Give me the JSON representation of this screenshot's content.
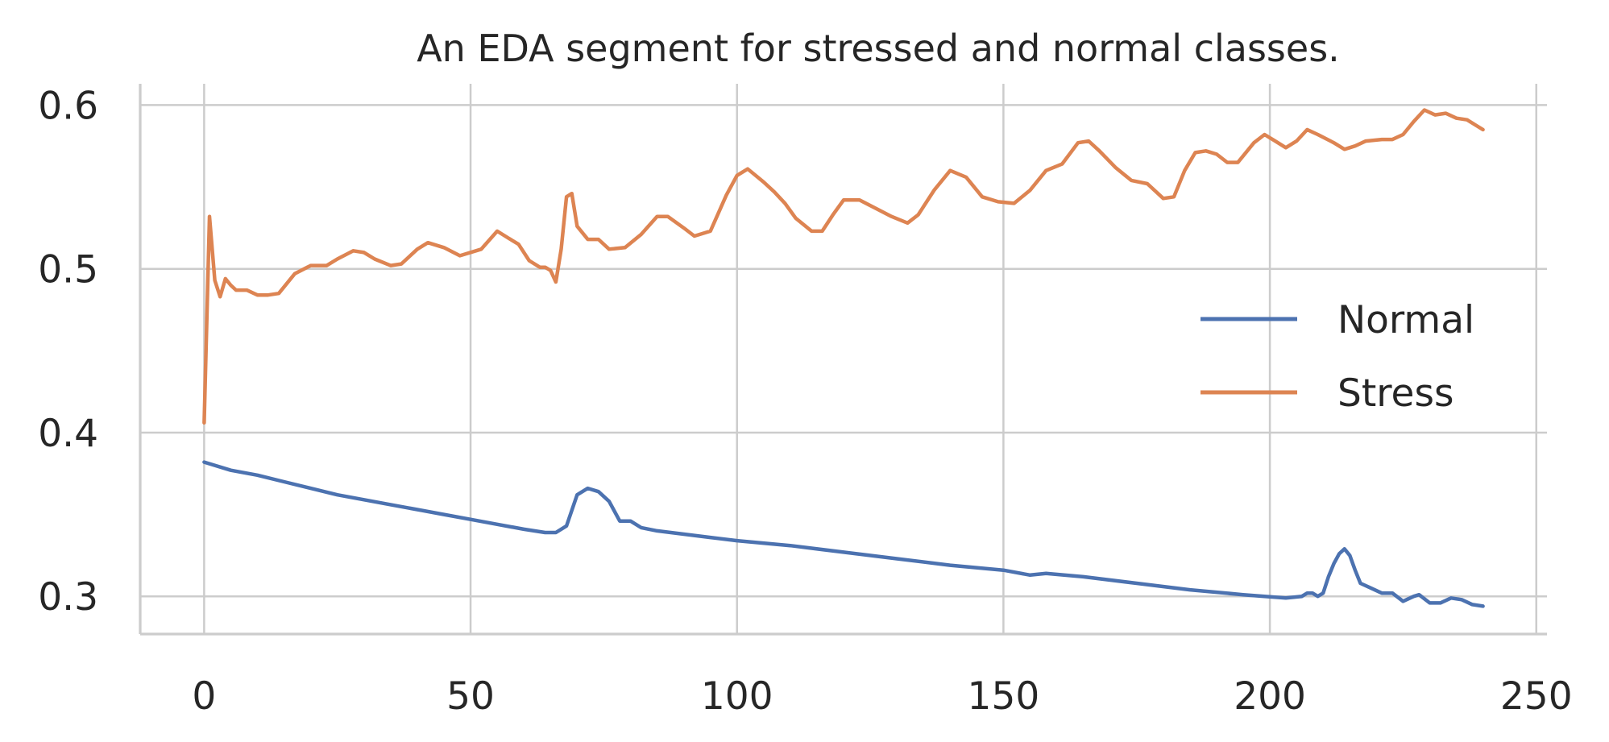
{
  "chart_data": {
    "type": "line",
    "title": "An EDA segment for stressed and normal classes.",
    "xlabel": "",
    "ylabel": "",
    "xlim": [
      -12,
      252
    ],
    "ylim": [
      0.277,
      0.613
    ],
    "xticks": [
      0,
      50,
      100,
      150,
      200,
      250
    ],
    "xtick_labels": [
      "0",
      "50",
      "100",
      "150",
      "200",
      "250"
    ],
    "yticks": [
      0.3,
      0.4,
      0.5,
      0.6
    ],
    "ytick_labels": [
      "0.3",
      "0.4",
      "0.5",
      "0.6"
    ],
    "grid": true,
    "legend_position": "right",
    "series": [
      {
        "name": "Normal",
        "color": "#4c72b0",
        "points": [
          [
            0,
            0.382
          ],
          [
            5,
            0.377
          ],
          [
            10,
            0.374
          ],
          [
            15,
            0.37
          ],
          [
            20,
            0.366
          ],
          [
            25,
            0.362
          ],
          [
            30,
            0.359
          ],
          [
            35,
            0.356
          ],
          [
            40,
            0.353
          ],
          [
            45,
            0.35
          ],
          [
            50,
            0.347
          ],
          [
            55,
            0.344
          ],
          [
            60,
            0.341
          ],
          [
            64,
            0.339
          ],
          [
            66,
            0.339
          ],
          [
            68,
            0.343
          ],
          [
            70,
            0.362
          ],
          [
            72,
            0.366
          ],
          [
            74,
            0.364
          ],
          [
            76,
            0.358
          ],
          [
            78,
            0.346
          ],
          [
            80,
            0.346
          ],
          [
            82,
            0.342
          ],
          [
            85,
            0.34
          ],
          [
            90,
            0.338
          ],
          [
            95,
            0.336
          ],
          [
            100,
            0.334
          ],
          [
            110,
            0.331
          ],
          [
            120,
            0.327
          ],
          [
            130,
            0.323
          ],
          [
            140,
            0.319
          ],
          [
            150,
            0.316
          ],
          [
            155,
            0.313
          ],
          [
            158,
            0.314
          ],
          [
            165,
            0.312
          ],
          [
            175,
            0.308
          ],
          [
            185,
            0.304
          ],
          [
            195,
            0.301
          ],
          [
            203,
            0.299
          ],
          [
            206,
            0.3
          ],
          [
            207,
            0.302
          ],
          [
            208,
            0.302
          ],
          [
            209,
            0.3
          ],
          [
            210,
            0.302
          ],
          [
            211,
            0.312
          ],
          [
            212,
            0.32
          ],
          [
            213,
            0.326
          ],
          [
            214,
            0.329
          ],
          [
            215,
            0.325
          ],
          [
            216,
            0.316
          ],
          [
            217,
            0.308
          ],
          [
            219,
            0.305
          ],
          [
            221,
            0.302
          ],
          [
            223,
            0.302
          ],
          [
            225,
            0.297
          ],
          [
            227,
            0.3
          ],
          [
            228,
            0.301
          ],
          [
            230,
            0.296
          ],
          [
            232,
            0.296
          ],
          [
            234,
            0.299
          ],
          [
            236,
            0.298
          ],
          [
            238,
            0.295
          ],
          [
            240,
            0.294
          ]
        ]
      },
      {
        "name": "Stress",
        "color": "#dd8452",
        "points": [
          [
            0,
            0.406
          ],
          [
            1,
            0.532
          ],
          [
            2,
            0.493
          ],
          [
            3,
            0.483
          ],
          [
            4,
            0.494
          ],
          [
            5,
            0.49
          ],
          [
            6,
            0.487
          ],
          [
            8,
            0.487
          ],
          [
            10,
            0.484
          ],
          [
            12,
            0.484
          ],
          [
            14,
            0.485
          ],
          [
            17,
            0.497
          ],
          [
            20,
            0.502
          ],
          [
            23,
            0.502
          ],
          [
            25,
            0.506
          ],
          [
            28,
            0.511
          ],
          [
            30,
            0.51
          ],
          [
            32,
            0.506
          ],
          [
            35,
            0.502
          ],
          [
            37,
            0.503
          ],
          [
            40,
            0.512
          ],
          [
            42,
            0.516
          ],
          [
            45,
            0.513
          ],
          [
            48,
            0.508
          ],
          [
            52,
            0.512
          ],
          [
            55,
            0.523
          ],
          [
            57,
            0.519
          ],
          [
            59,
            0.515
          ],
          [
            61,
            0.505
          ],
          [
            63,
            0.501
          ],
          [
            64,
            0.501
          ],
          [
            65,
            0.499
          ],
          [
            66,
            0.492
          ],
          [
            67,
            0.512
          ],
          [
            68,
            0.544
          ],
          [
            69,
            0.546
          ],
          [
            70,
            0.526
          ],
          [
            72,
            0.518
          ],
          [
            74,
            0.518
          ],
          [
            76,
            0.512
          ],
          [
            79,
            0.513
          ],
          [
            82,
            0.521
          ],
          [
            85,
            0.532
          ],
          [
            87,
            0.532
          ],
          [
            90,
            0.525
          ],
          [
            92,
            0.52
          ],
          [
            95,
            0.523
          ],
          [
            98,
            0.545
          ],
          [
            100,
            0.557
          ],
          [
            102,
            0.561
          ],
          [
            105,
            0.553
          ],
          [
            107,
            0.547
          ],
          [
            109,
            0.54
          ],
          [
            111,
            0.531
          ],
          [
            114,
            0.523
          ],
          [
            116,
            0.523
          ],
          [
            118,
            0.533
          ],
          [
            120,
            0.542
          ],
          [
            123,
            0.542
          ],
          [
            126,
            0.537
          ],
          [
            129,
            0.532
          ],
          [
            132,
            0.528
          ],
          [
            134,
            0.533
          ],
          [
            137,
            0.548
          ],
          [
            140,
            0.56
          ],
          [
            143,
            0.556
          ],
          [
            146,
            0.544
          ],
          [
            149,
            0.541
          ],
          [
            152,
            0.54
          ],
          [
            155,
            0.548
          ],
          [
            158,
            0.56
          ],
          [
            161,
            0.564
          ],
          [
            164,
            0.577
          ],
          [
            166,
            0.578
          ],
          [
            168,
            0.572
          ],
          [
            171,
            0.562
          ],
          [
            174,
            0.554
          ],
          [
            177,
            0.552
          ],
          [
            180,
            0.543
          ],
          [
            182,
            0.544
          ],
          [
            184,
            0.56
          ],
          [
            186,
            0.571
          ],
          [
            188,
            0.572
          ],
          [
            190,
            0.57
          ],
          [
            192,
            0.565
          ],
          [
            194,
            0.565
          ],
          [
            197,
            0.577
          ],
          [
            199,
            0.582
          ],
          [
            201,
            0.578
          ],
          [
            203,
            0.574
          ],
          [
            205,
            0.578
          ],
          [
            207,
            0.585
          ],
          [
            209,
            0.582
          ],
          [
            212,
            0.577
          ],
          [
            214,
            0.573
          ],
          [
            216,
            0.575
          ],
          [
            218,
            0.578
          ],
          [
            221,
            0.579
          ],
          [
            223,
            0.579
          ],
          [
            225,
            0.582
          ],
          [
            227,
            0.59
          ],
          [
            229,
            0.597
          ],
          [
            231,
            0.594
          ],
          [
            233,
            0.595
          ],
          [
            235,
            0.592
          ],
          [
            237,
            0.591
          ],
          [
            239,
            0.587
          ],
          [
            240,
            0.585
          ]
        ]
      }
    ]
  }
}
